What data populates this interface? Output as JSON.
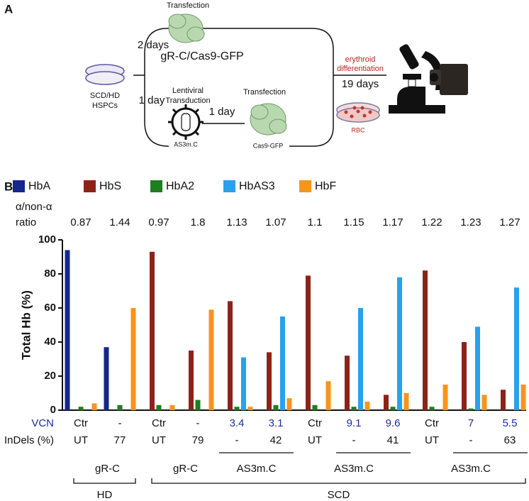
{
  "panel_a": {
    "label": "A",
    "transfection_top": "Transfection",
    "days_top": "2 days",
    "construct_top": "gR-C/Cas9-GFP",
    "cells_line1": "SCD/HD",
    "cells_line2": "HSPCs",
    "days_bottom": "1 day",
    "transduction_line1": "Lentiviral",
    "transduction_line2": "Transduction",
    "vector": "AS3m.C",
    "days_middle": "1 day",
    "transfection_bottom": "Transfection",
    "construct_bottom": "Cas9-GFP",
    "differentiation_line1": "erythroid",
    "differentiation_line2": "differentiation",
    "days_diff": "19 days",
    "rbc": "RBC"
  },
  "chart_data": {
    "type": "bar",
    "panel_label": "B",
    "y_label": "Total Hb (%)",
    "categories": [
      null,
      null,
      null,
      null,
      null,
      null,
      null,
      null,
      null,
      null,
      null,
      null
    ],
    "ylim": [
      0,
      100
    ],
    "yticks": [
      0,
      20,
      40,
      60,
      80,
      100
    ],
    "series": [
      {
        "name": "HbA",
        "color": "#15278c",
        "values": [
          94,
          37,
          null,
          null,
          null,
          null,
          null,
          null,
          null,
          null,
          null,
          null
        ]
      },
      {
        "name": "HbS",
        "color": "#8c2318",
        "values": [
          null,
          null,
          93,
          35,
          64,
          34,
          79,
          32,
          9,
          82,
          40,
          12
        ]
      },
      {
        "name": "HbA2",
        "color": "#1f7e1f",
        "values": [
          2,
          3,
          3,
          6,
          2,
          3,
          3,
          2,
          2,
          2,
          1,
          null
        ]
      },
      {
        "name": "HbAS3",
        "color": "#29a1eb",
        "values": [
          null,
          null,
          null,
          null,
          31,
          55,
          null,
          60,
          78,
          null,
          49,
          72
        ]
      },
      {
        "name": "HbF",
        "color": "#f7941d",
        "values": [
          4,
          60,
          3,
          59,
          2,
          7,
          17,
          5,
          10,
          15,
          9,
          15
        ]
      }
    ],
    "ratio_label": [
      "α/non-α",
      "ratio"
    ],
    "ratio": [
      0.87,
      1.44,
      0.97,
      1.8,
      1.13,
      1.07,
      1.1,
      1.15,
      1.17,
      1.22,
      1.23,
      1.27
    ],
    "vcn_label": "VCN",
    "vcn_color": "#1c2f9b",
    "vcn": [
      "Ctr",
      "-",
      "Ctr",
      "-",
      "3.4",
      "3.1",
      "Ctr",
      "9.1",
      "9.6",
      "Ctr",
      "7",
      "5.5"
    ],
    "indels_label": "InDels (%)",
    "indels": [
      "UT",
      "77",
      "UT",
      "79",
      "-",
      "42",
      "UT",
      "-",
      "41",
      "UT",
      "-",
      "63"
    ],
    "treatment_groups": [
      "gR-C",
      "gR-C",
      "AS3m.C",
      "AS3m.C",
      "AS3m.C"
    ],
    "genotype_groups": [
      "HD",
      "SCD"
    ]
  }
}
